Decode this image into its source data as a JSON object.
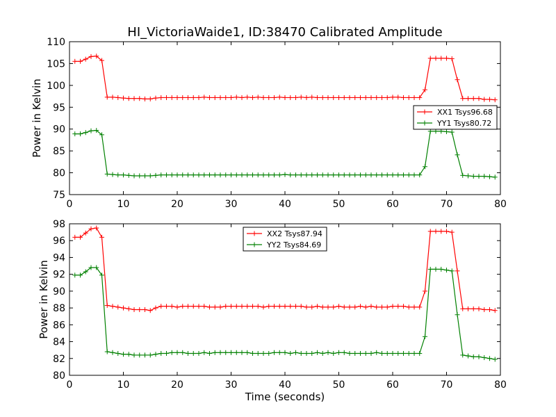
{
  "chart_data": [
    {
      "type": "line",
      "title": "HI_VictoriaWaide1, ID:38470 Calibrated Amplitude",
      "xlabel": "",
      "ylabel": "Power in Kelvin",
      "xlim": [
        0,
        80
      ],
      "ylim": [
        75,
        110
      ],
      "xticks": [
        0,
        10,
        20,
        30,
        40,
        50,
        60,
        70,
        80
      ],
      "yticks": [
        75,
        80,
        85,
        90,
        95,
        100,
        105,
        110
      ],
      "grid": false,
      "legend_position": "right",
      "x": [
        1,
        2,
        3,
        4,
        5,
        6,
        7,
        8,
        9,
        10,
        11,
        12,
        13,
        14,
        15,
        16,
        17,
        18,
        19,
        20,
        21,
        22,
        23,
        24,
        25,
        26,
        27,
        28,
        29,
        30,
        31,
        32,
        33,
        34,
        35,
        36,
        37,
        38,
        39,
        40,
        41,
        42,
        43,
        44,
        45,
        46,
        47,
        48,
        49,
        50,
        51,
        52,
        53,
        54,
        55,
        56,
        57,
        58,
        59,
        60,
        61,
        62,
        63,
        64,
        65,
        66,
        67,
        68,
        69,
        70,
        71,
        72,
        73,
        74,
        75,
        76,
        77,
        78,
        79
      ],
      "series": [
        {
          "name": "XX1 Tsys96.68",
          "color": "#ff0000",
          "values": [
            105.5,
            105.5,
            106.0,
            106.6,
            106.7,
            105.7,
            97.3,
            97.3,
            97.2,
            97.1,
            97.0,
            97.0,
            97.0,
            96.9,
            96.9,
            97.1,
            97.2,
            97.2,
            97.2,
            97.2,
            97.2,
            97.2,
            97.2,
            97.2,
            97.3,
            97.2,
            97.2,
            97.2,
            97.2,
            97.2,
            97.3,
            97.2,
            97.3,
            97.2,
            97.3,
            97.2,
            97.2,
            97.2,
            97.3,
            97.2,
            97.2,
            97.2,
            97.3,
            97.2,
            97.3,
            97.2,
            97.2,
            97.2,
            97.2,
            97.2,
            97.2,
            97.2,
            97.2,
            97.2,
            97.2,
            97.2,
            97.2,
            97.2,
            97.2,
            97.3,
            97.3,
            97.2,
            97.2,
            97.2,
            97.2,
            99.0,
            106.2,
            106.2,
            106.2,
            106.2,
            106.1,
            101.3,
            97.0,
            97.0,
            97.0,
            97.0,
            96.8,
            96.8,
            96.7
          ]
        },
        {
          "name": "YY1 Tsys80.72",
          "color": "#008000",
          "values": [
            88.9,
            88.9,
            89.2,
            89.6,
            89.7,
            88.7,
            79.7,
            79.6,
            79.5,
            79.5,
            79.4,
            79.3,
            79.3,
            79.3,
            79.3,
            79.4,
            79.5,
            79.5,
            79.5,
            79.5,
            79.5,
            79.5,
            79.5,
            79.5,
            79.5,
            79.5,
            79.5,
            79.5,
            79.5,
            79.5,
            79.5,
            79.5,
            79.5,
            79.5,
            79.5,
            79.5,
            79.5,
            79.5,
            79.5,
            79.6,
            79.5,
            79.5,
            79.5,
            79.5,
            79.5,
            79.5,
            79.5,
            79.5,
            79.5,
            79.5,
            79.5,
            79.5,
            79.5,
            79.5,
            79.5,
            79.5,
            79.5,
            79.5,
            79.5,
            79.5,
            79.5,
            79.5,
            79.5,
            79.5,
            79.5,
            81.4,
            89.5,
            89.5,
            89.5,
            89.4,
            89.3,
            84.1,
            79.4,
            79.3,
            79.2,
            79.2,
            79.2,
            79.1,
            79.0
          ]
        }
      ]
    },
    {
      "type": "line",
      "title": "",
      "xlabel": "Time (seconds)",
      "ylabel": "Power in Kelvin",
      "xlim": [
        0,
        80
      ],
      "ylim": [
        80,
        98
      ],
      "xticks": [
        0,
        10,
        20,
        30,
        40,
        50,
        60,
        70,
        80
      ],
      "yticks": [
        80,
        82,
        84,
        86,
        88,
        90,
        92,
        94,
        96,
        98
      ],
      "grid": false,
      "legend_position": "top-center",
      "x": [
        1,
        2,
        3,
        4,
        5,
        6,
        7,
        8,
        9,
        10,
        11,
        12,
        13,
        14,
        15,
        16,
        17,
        18,
        19,
        20,
        21,
        22,
        23,
        24,
        25,
        26,
        27,
        28,
        29,
        30,
        31,
        32,
        33,
        34,
        35,
        36,
        37,
        38,
        39,
        40,
        41,
        42,
        43,
        44,
        45,
        46,
        47,
        48,
        49,
        50,
        51,
        52,
        53,
        54,
        55,
        56,
        57,
        58,
        59,
        60,
        61,
        62,
        63,
        64,
        65,
        66,
        67,
        68,
        69,
        70,
        71,
        72,
        73,
        74,
        75,
        76,
        77,
        78,
        79
      ],
      "series": [
        {
          "name": "XX2 Tsys87.94",
          "color": "#ff0000",
          "values": [
            96.4,
            96.4,
            96.9,
            97.4,
            97.5,
            96.4,
            88.3,
            88.2,
            88.1,
            88.0,
            87.9,
            87.8,
            87.8,
            87.8,
            87.7,
            88.0,
            88.2,
            88.2,
            88.2,
            88.1,
            88.2,
            88.2,
            88.2,
            88.2,
            88.2,
            88.1,
            88.1,
            88.1,
            88.2,
            88.2,
            88.2,
            88.2,
            88.2,
            88.2,
            88.2,
            88.1,
            88.2,
            88.2,
            88.2,
            88.2,
            88.2,
            88.2,
            88.2,
            88.1,
            88.1,
            88.2,
            88.1,
            88.1,
            88.1,
            88.2,
            88.1,
            88.1,
            88.1,
            88.2,
            88.1,
            88.2,
            88.1,
            88.1,
            88.1,
            88.2,
            88.2,
            88.2,
            88.1,
            88.1,
            88.1,
            90.0,
            97.1,
            97.1,
            97.1,
            97.1,
            97.0,
            92.4,
            87.9,
            87.9,
            87.9,
            87.9,
            87.8,
            87.8,
            87.7
          ]
        },
        {
          "name": "YY2 Tsys84.69",
          "color": "#008000",
          "values": [
            91.9,
            91.9,
            92.3,
            92.8,
            92.8,
            91.9,
            82.8,
            82.7,
            82.6,
            82.5,
            82.5,
            82.4,
            82.4,
            82.4,
            82.4,
            82.5,
            82.6,
            82.6,
            82.7,
            82.7,
            82.7,
            82.6,
            82.6,
            82.6,
            82.7,
            82.6,
            82.7,
            82.7,
            82.7,
            82.7,
            82.7,
            82.7,
            82.7,
            82.6,
            82.6,
            82.6,
            82.6,
            82.7,
            82.7,
            82.7,
            82.6,
            82.7,
            82.6,
            82.6,
            82.6,
            82.7,
            82.6,
            82.7,
            82.6,
            82.7,
            82.7,
            82.6,
            82.6,
            82.6,
            82.6,
            82.6,
            82.7,
            82.6,
            82.6,
            82.6,
            82.6,
            82.6,
            82.6,
            82.6,
            82.6,
            84.6,
            92.6,
            92.6,
            92.6,
            92.5,
            92.4,
            87.2,
            82.4,
            82.3,
            82.2,
            82.2,
            82.1,
            82.0,
            81.9
          ]
        }
      ]
    }
  ]
}
